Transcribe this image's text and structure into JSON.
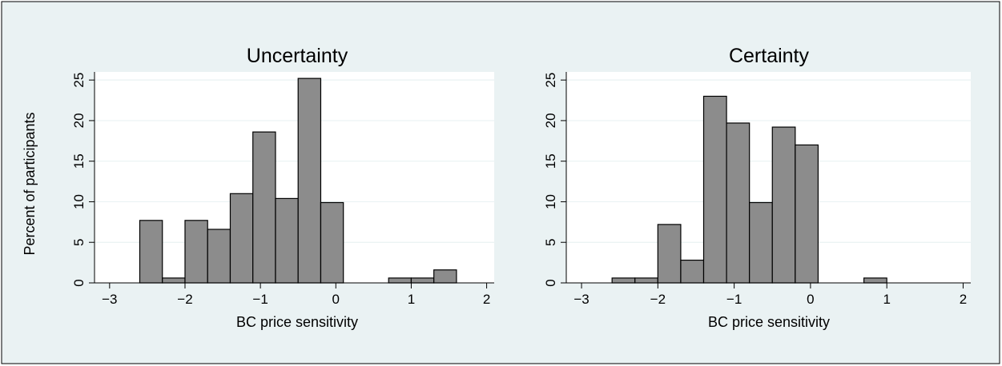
{
  "colors": {
    "background": "#eaf2f3",
    "bar_fill": "#8c8c8c",
    "bar_stroke": "#000000",
    "axis": "#000000"
  },
  "ylabel": "Percent of participants",
  "chart_data": [
    {
      "type": "bar",
      "title": "Uncertainty",
      "xlabel": "BC price sensitivity",
      "ylabel": "Percent of participants",
      "xlim": [
        -3.2,
        2.1
      ],
      "ylim": [
        0,
        26
      ],
      "x_ticks": [
        -3,
        -2,
        -1,
        0,
        1,
        2
      ],
      "x_tick_labels": [
        "−3",
        "−2",
        "−1",
        "0",
        "1",
        "2"
      ],
      "y_ticks": [
        0,
        5,
        10,
        15,
        20,
        25
      ],
      "grid": true,
      "bin_width": 0.3,
      "bins": [
        {
          "x0": -2.6,
          "value": 7.7
        },
        {
          "x0": -2.3,
          "value": 0.6
        },
        {
          "x0": -2.0,
          "value": 7.7
        },
        {
          "x0": -1.7,
          "value": 6.6
        },
        {
          "x0": -1.4,
          "value": 11.0
        },
        {
          "x0": -1.1,
          "value": 18.6
        },
        {
          "x0": -0.8,
          "value": 10.4
        },
        {
          "x0": -0.5,
          "value": 25.2
        },
        {
          "x0": -0.2,
          "value": 9.9
        },
        {
          "x0": 0.7,
          "value": 0.6
        },
        {
          "x0": 1.0,
          "value": 0.6
        },
        {
          "x0": 1.3,
          "value": 1.6
        }
      ]
    },
    {
      "type": "bar",
      "title": "Certainty",
      "xlabel": "BC price sensitivity",
      "ylabel": "",
      "xlim": [
        -3.2,
        2.1
      ],
      "ylim": [
        0,
        26
      ],
      "x_ticks": [
        -3,
        -2,
        -1,
        0,
        1,
        2
      ],
      "x_tick_labels": [
        "−3",
        "−2",
        "−1",
        "0",
        "1",
        "2"
      ],
      "y_ticks": [
        0,
        5,
        10,
        15,
        20,
        25
      ],
      "grid": true,
      "bin_width": 0.3,
      "bins": [
        {
          "x0": -2.6,
          "value": 0.6
        },
        {
          "x0": -2.3,
          "value": 0.6
        },
        {
          "x0": -2.0,
          "value": 7.2
        },
        {
          "x0": -1.7,
          "value": 2.8
        },
        {
          "x0": -1.4,
          "value": 23.0
        },
        {
          "x0": -1.1,
          "value": 19.7
        },
        {
          "x0": -0.8,
          "value": 9.9
        },
        {
          "x0": -0.5,
          "value": 19.2
        },
        {
          "x0": -0.2,
          "value": 17.0
        },
        {
          "x0": 0.7,
          "value": 0.6
        }
      ]
    }
  ]
}
